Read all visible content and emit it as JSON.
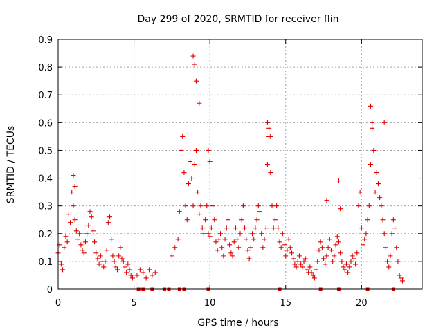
{
  "chart_data": {
    "type": "scatter",
    "title": "Day 299 of 2020, SRMTID for receiver flin",
    "xlabel": "GPS time / hours",
    "ylabel": "SRMTID / TECUs",
    "xlim": [
      0,
      24
    ],
    "ylim": [
      0,
      0.9
    ],
    "xticks": [
      "0",
      "5",
      "10",
      "15",
      "20"
    ],
    "yticks": [
      "0",
      "0.1",
      "0.2",
      "0.3",
      "0.4",
      "0.5",
      "0.6",
      "0.7",
      "0.8",
      "0.9"
    ],
    "grid": true,
    "marker": "+",
    "color": "#e00000",
    "series": [
      {
        "name": "SRMTID",
        "x": [
          0.0,
          0.1,
          0.2,
          0.3,
          0.4,
          0.5,
          0.6,
          0.7,
          0.8,
          0.9,
          1.0,
          1.1,
          1.2,
          1.3,
          1.4,
          1.5,
          1.6,
          1.7,
          1.8,
          1.9,
          2.0,
          2.1,
          2.2,
          2.3,
          2.4,
          2.5,
          2.6,
          2.7,
          2.8,
          2.9,
          3.0,
          3.1,
          3.2,
          3.3,
          3.4,
          3.5,
          3.6,
          3.7,
          3.8,
          3.9,
          4.0,
          4.1,
          4.2,
          4.3,
          4.4,
          4.5,
          4.6,
          4.7,
          4.8,
          4.9,
          5.2,
          5.4,
          5.6,
          5.8,
          6.0,
          6.2,
          6.4,
          7.5,
          7.7,
          7.9,
          8.0,
          8.1,
          8.2,
          8.3,
          8.4,
          8.5,
          8.6,
          8.7,
          8.8,
          8.9,
          9.0,
          9.1,
          9.2,
          9.3,
          9.4,
          9.5,
          9.6,
          9.7,
          9.8,
          9.9,
          10.0,
          10.1,
          10.2,
          10.3,
          10.4,
          10.5,
          10.6,
          10.7,
          10.8,
          10.9,
          11.0,
          11.1,
          11.2,
          11.3,
          11.4,
          11.5,
          11.6,
          11.7,
          11.8,
          11.9,
          12.0,
          12.1,
          12.2,
          12.3,
          12.4,
          12.5,
          12.6,
          12.7,
          12.8,
          12.9,
          13.0,
          13.1,
          13.2,
          13.3,
          13.4,
          13.5,
          13.6,
          13.7,
          13.8,
          13.9,
          14.0,
          14.1,
          14.2,
          14.3,
          14.4,
          14.5,
          14.6,
          14.7,
          14.8,
          14.9,
          15.0,
          15.1,
          15.2,
          15.3,
          15.4,
          15.5,
          15.6,
          15.7,
          15.8,
          15.9,
          16.0,
          16.1,
          16.2,
          16.3,
          16.4,
          16.5,
          16.6,
          16.7,
          16.8,
          16.9,
          17.0,
          17.1,
          17.2,
          17.3,
          17.4,
          17.5,
          17.6,
          17.7,
          17.8,
          17.9,
          18.0,
          18.1,
          18.2,
          18.3,
          18.4,
          18.5,
          18.6,
          18.7,
          18.8,
          18.9,
          19.0,
          19.1,
          19.2,
          19.3,
          19.4,
          19.5,
          19.6,
          19.7,
          19.8,
          19.9,
          20.0,
          20.1,
          20.2,
          20.3,
          20.4,
          20.5,
          20.6,
          20.7,
          20.8,
          20.9,
          21.0,
          21.1,
          21.2,
          21.3,
          21.4,
          21.5,
          21.6,
          21.7,
          21.8,
          21.9,
          22.0,
          22.1,
          22.2,
          22.3,
          22.4,
          22.5,
          22.6,
          22.7,
          8.9,
          9.0,
          9.1,
          9.3,
          9.9,
          10.0,
          13.8,
          13.9,
          14.0,
          20.6,
          20.7,
          21.5,
          18.5,
          18.6,
          17.7,
          1.0,
          1.1
        ],
        "y": [
          0.13,
          0.16,
          0.09,
          0.07,
          0.15,
          0.19,
          0.17,
          0.27,
          0.24,
          0.35,
          0.3,
          0.25,
          0.21,
          0.18,
          0.2,
          0.16,
          0.14,
          0.13,
          0.17,
          0.2,
          0.23,
          0.28,
          0.26,
          0.21,
          0.17,
          0.13,
          0.11,
          0.09,
          0.12,
          0.1,
          0.08,
          0.1,
          0.14,
          0.24,
          0.26,
          0.18,
          0.12,
          0.1,
          0.08,
          0.07,
          0.12,
          0.15,
          0.11,
          0.1,
          0.08,
          0.06,
          0.09,
          0.07,
          0.05,
          0.04,
          0.05,
          0.07,
          0.06,
          0.04,
          0.07,
          0.05,
          0.06,
          0.12,
          0.15,
          0.18,
          0.28,
          0.5,
          0.55,
          0.42,
          0.3,
          0.25,
          0.38,
          0.46,
          0.4,
          0.3,
          0.45,
          0.5,
          0.35,
          0.27,
          0.3,
          0.22,
          0.2,
          0.25,
          0.3,
          0.2,
          0.19,
          0.22,
          0.3,
          0.25,
          0.17,
          0.14,
          0.18,
          0.2,
          0.15,
          0.12,
          0.18,
          0.22,
          0.25,
          0.16,
          0.13,
          0.12,
          0.17,
          0.22,
          0.18,
          0.15,
          0.2,
          0.25,
          0.3,
          0.22,
          0.18,
          0.14,
          0.11,
          0.15,
          0.2,
          0.18,
          0.22,
          0.25,
          0.3,
          0.28,
          0.2,
          0.15,
          0.18,
          0.22,
          0.45,
          0.55,
          0.42,
          0.3,
          0.22,
          0.25,
          0.3,
          0.22,
          0.17,
          0.15,
          0.2,
          0.16,
          0.12,
          0.14,
          0.18,
          0.15,
          0.13,
          0.11,
          0.09,
          0.08,
          0.1,
          0.12,
          0.09,
          0.08,
          0.1,
          0.11,
          0.07,
          0.06,
          0.08,
          0.06,
          0.05,
          0.04,
          0.07,
          0.1,
          0.14,
          0.17,
          0.15,
          0.11,
          0.09,
          0.12,
          0.15,
          0.18,
          0.14,
          0.1,
          0.12,
          0.16,
          0.19,
          0.17,
          0.13,
          0.1,
          0.08,
          0.07,
          0.09,
          0.06,
          0.08,
          0.1,
          0.12,
          0.11,
          0.09,
          0.13,
          0.3,
          0.35,
          0.22,
          0.16,
          0.18,
          0.2,
          0.25,
          0.3,
          0.45,
          0.6,
          0.5,
          0.35,
          0.42,
          0.38,
          0.33,
          0.3,
          0.25,
          0.2,
          0.15,
          0.1,
          0.08,
          0.12,
          0.2,
          0.25,
          0.22,
          0.15,
          0.1,
          0.05,
          0.04,
          0.03,
          0.84,
          0.81,
          0.75,
          0.67,
          0.5,
          0.46,
          0.6,
          0.58,
          0.55,
          0.66,
          0.58,
          0.6,
          0.39,
          0.29,
          0.32,
          0.41,
          0.37
        ]
      }
    ],
    "bottom_marks_x": [
      5.3,
      5.6,
      6.2,
      7.0,
      7.3,
      8.0,
      8.3,
      9.9,
      14.6,
      17.3,
      18.5,
      20.4,
      22.1
    ]
  }
}
